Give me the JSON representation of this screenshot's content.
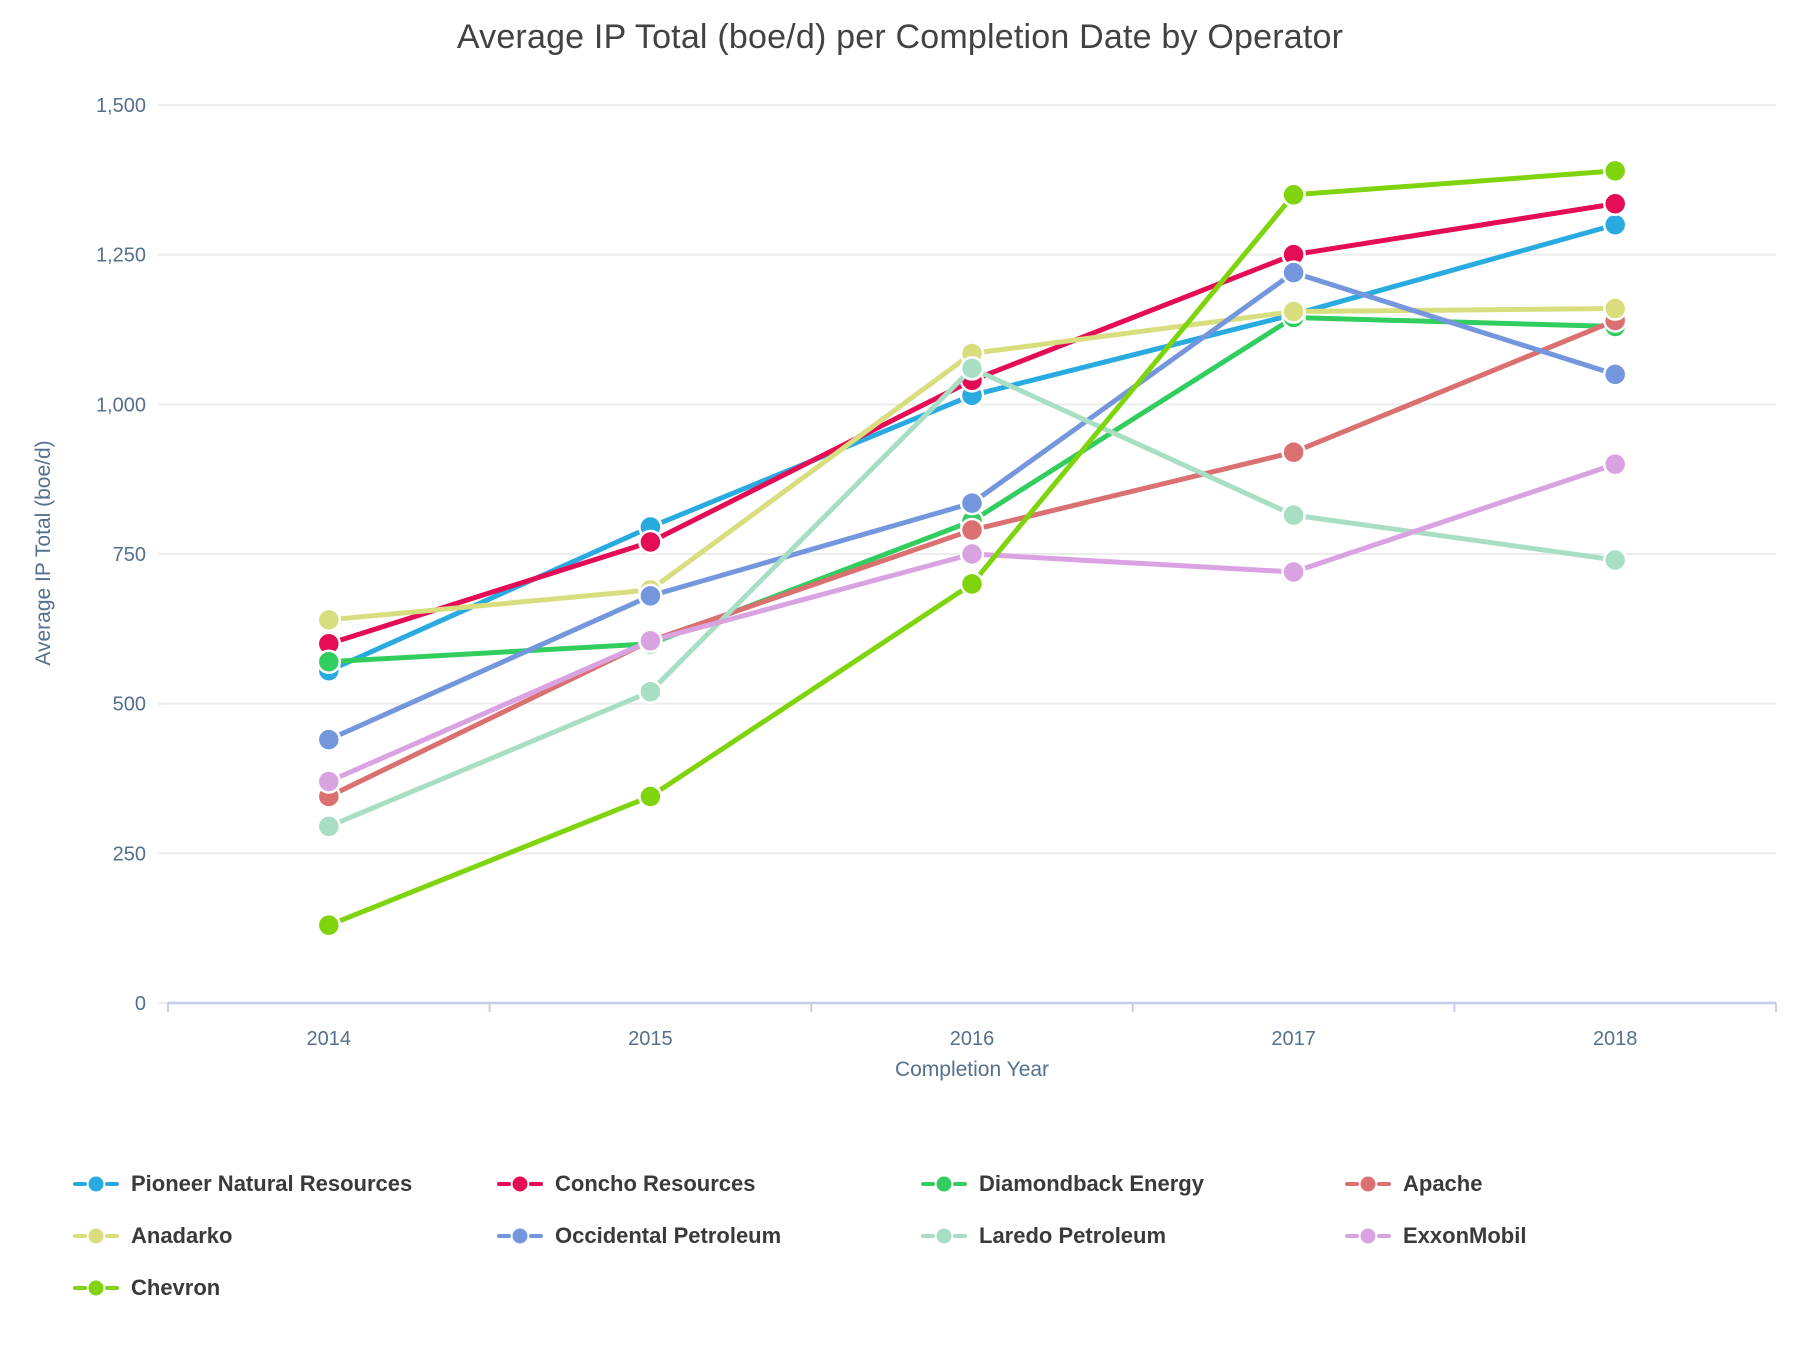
{
  "chart_data": {
    "type": "line",
    "title": "Average IP Total (boe/d) per Completion Date by Operator",
    "xlabel": "Completion Year",
    "ylabel": "Average IP Total (boe/d)",
    "categories": [
      "2014",
      "2015",
      "2016",
      "2017",
      "2018"
    ],
    "ylim": [
      0,
      1500
    ],
    "yticks": [
      0,
      250,
      500,
      750,
      1000,
      1250,
      1500
    ],
    "ytick_labels": [
      "0",
      "250",
      "500",
      "750",
      "1,000",
      "1,250",
      "1,500"
    ],
    "grid": true,
    "legend_position": "bottom",
    "series": [
      {
        "name": "Pioneer Natural Resources",
        "color": "#29abe2",
        "values": [
          555,
          795,
          1015,
          1150,
          1300
        ]
      },
      {
        "name": "Concho Resources",
        "color": "#e40d55",
        "values": [
          600,
          770,
          1040,
          1250,
          1335
        ]
      },
      {
        "name": "Diamondback Energy",
        "color": "#31cd5e",
        "values": [
          570,
          600,
          805,
          1145,
          1130
        ]
      },
      {
        "name": "Apache",
        "color": "#db7070",
        "values": [
          345,
          605,
          790,
          920,
          1140
        ]
      },
      {
        "name": "Anadarko",
        "color": "#d8de7e",
        "values": [
          640,
          690,
          1085,
          1155,
          1160
        ]
      },
      {
        "name": "Occidental Petroleum",
        "color": "#7396dc",
        "values": [
          440,
          680,
          835,
          1220,
          1050
        ]
      },
      {
        "name": "Laredo Petroleum",
        "color": "#a8dfc4",
        "values": [
          295,
          520,
          1060,
          815,
          740
        ]
      },
      {
        "name": "ExxonMobil",
        "color": "#d9a3e2",
        "values": [
          370,
          605,
          750,
          720,
          900
        ]
      },
      {
        "name": "Chevron",
        "color": "#80d40e",
        "values": [
          130,
          345,
          700,
          1350,
          1390
        ]
      }
    ],
    "theme": {
      "title_color": "#424242",
      "axis_text_color": "#54708e",
      "legend_text_color": "#3a3a3a",
      "gridline_color": "#ececec",
      "axis_line_color": "#c6cde8",
      "point_outline_color": "#ffffff"
    }
  }
}
